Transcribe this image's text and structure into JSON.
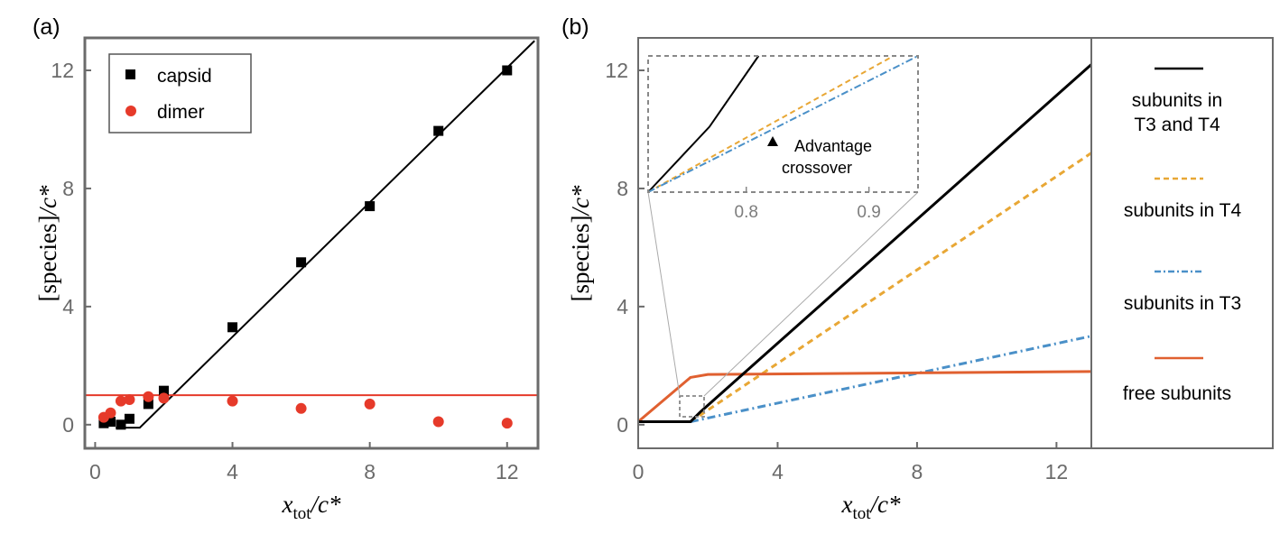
{
  "chart_data": [
    {
      "panel": "(a)",
      "type": "scatter",
      "xlabel": {
        "var": "x",
        "sub": "tot",
        "den": "/c*"
      },
      "ylabel": {
        "text": "[species]",
        "den": "/c*"
      },
      "xlim": [
        -0.3,
        12.9
      ],
      "ylim": [
        -0.8,
        13.1
      ],
      "xticks": [
        0,
        4,
        8,
        12
      ],
      "yticks": [
        0,
        4,
        8,
        12
      ],
      "legend": {
        "placement": "top-left",
        "entries": [
          "capsid",
          "dimer"
        ]
      },
      "series": [
        {
          "name": "capsid",
          "marker": "square",
          "color": "#000000",
          "x": [
            0.25,
            0.45,
            0.75,
            1.0,
            1.55,
            2.0,
            4.0,
            6.0,
            8.0,
            10.0,
            12.0
          ],
          "y": [
            0.05,
            0.1,
            0.0,
            0.2,
            0.7,
            1.15,
            3.3,
            5.5,
            7.4,
            9.95,
            12.0
          ]
        },
        {
          "name": "dimer",
          "marker": "circle",
          "color": "#e63a2a",
          "x": [
            0.25,
            0.45,
            0.75,
            1.0,
            1.55,
            2.0,
            4.0,
            6.0,
            8.0,
            10.0,
            12.0
          ],
          "y": [
            0.25,
            0.4,
            0.8,
            0.85,
            0.95,
            0.9,
            0.8,
            0.55,
            0.7,
            0.1,
            0.05
          ]
        }
      ],
      "lines": [
        {
          "name": "capsid fit",
          "color": "#000000",
          "x": [
            0.6,
            1.3,
            12.8
          ],
          "y": [
            -0.1,
            -0.1,
            13.0
          ]
        },
        {
          "name": "dimer fit",
          "color": "#e63a2a",
          "x": [
            -0.3,
            12.9
          ],
          "y": [
            1.0,
            1.0
          ]
        }
      ]
    },
    {
      "panel": "(b)",
      "type": "line",
      "xlabel": {
        "var": "x",
        "sub": "tot",
        "den": "/c*"
      },
      "ylabel": {
        "text": "[species]",
        "den": "/c*"
      },
      "xlim": [
        0,
        13
      ],
      "ylim": [
        -0.8,
        13.1
      ],
      "xticks": [
        0,
        4,
        8,
        12
      ],
      "yticks": [
        0,
        4,
        8,
        12
      ],
      "legend": {
        "placement": "right",
        "entries": [
          "subunits in T3 and T4",
          "subunits in T4",
          "subunits in T3",
          "free subunits"
        ]
      },
      "series": [
        {
          "name": "subunits in T3 and T4",
          "color": "#000000",
          "dash": "solid",
          "x": [
            0,
            1.5,
            1.8,
            13
          ],
          "y": [
            0.1,
            0.1,
            0.45,
            12.2
          ]
        },
        {
          "name": "subunits in T4",
          "color": "#e8a735",
          "dash": "dashed",
          "x": [
            1.5,
            13
          ],
          "y": [
            0.1,
            9.2
          ]
        },
        {
          "name": "subunits in T3",
          "color": "#4a90c8",
          "dash": "dashdot",
          "x": [
            1.5,
            13
          ],
          "y": [
            0.1,
            3.0
          ]
        },
        {
          "name": "free subunits",
          "color": "#e06030",
          "dash": "solid",
          "x": [
            0,
            1.5,
            2,
            13
          ],
          "y": [
            0.1,
            1.6,
            1.7,
            1.8
          ]
        }
      ],
      "inset": {
        "xlim": [
          0.72,
          0.94
        ],
        "xticks": [
          0.8,
          0.9
        ],
        "annotation": "Advantage crossover",
        "series": [
          {
            "name": "subunits in T3 and T4",
            "color": "#000000",
            "x": [
              0.72,
              0.77,
              0.81
            ],
            "y": [
              0.0,
              0.48,
              1.0
            ]
          },
          {
            "name": "subunits in T4",
            "color": "#e8a735",
            "x": [
              0.72,
              0.81,
              0.92
            ],
            "y": [
              0.0,
              0.45,
              1.0
            ]
          },
          {
            "name": "subunits in T3",
            "color": "#4a90c8",
            "x": [
              0.72,
              0.94
            ],
            "y": [
              0.0,
              1.0
            ]
          }
        ]
      }
    }
  ]
}
